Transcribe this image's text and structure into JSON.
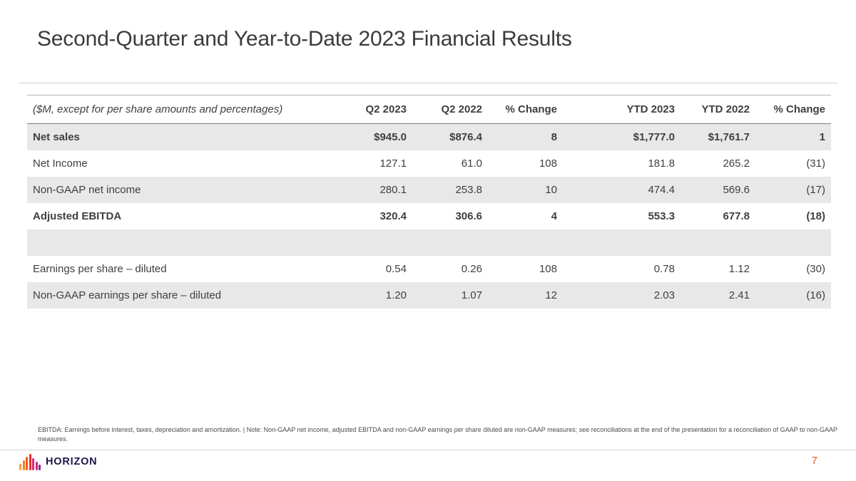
{
  "slide": {
    "title": "Second-Quarter and Year-to-Date 2023 Financial Results"
  },
  "table": {
    "note_label": "($M, except for per share amounts and percentages)",
    "columns": [
      "Q2 2023",
      "Q2 2022",
      "% Change",
      "YTD 2023",
      "YTD 2022",
      "% Change"
    ],
    "rows": [
      {
        "label": "Net sales",
        "values": [
          "$945.0",
          "$876.4",
          "8",
          "$1,777.0",
          "$1,761.7",
          "1"
        ]
      },
      {
        "label": "Net Income",
        "values": [
          "127.1",
          "61.0",
          "108",
          "181.8",
          "265.2",
          "(31)"
        ]
      },
      {
        "label": "Non-GAAP net income",
        "values": [
          "280.1",
          "253.8",
          "10",
          "474.4",
          "569.6",
          "(17)"
        ]
      },
      {
        "label": "Adjusted EBITDA",
        "values": [
          "320.4",
          "306.6",
          "4",
          "553.3",
          "677.8",
          "(18)"
        ]
      },
      {
        "label": "Earnings per share – diluted",
        "values": [
          "0.54",
          "0.26",
          "108",
          "0.78",
          "1.12",
          "(30)"
        ]
      },
      {
        "label": "Non-GAAP earnings per share – diluted",
        "values": [
          "1.20",
          "1.07",
          "12",
          "2.03",
          "2.41",
          "(16)"
        ]
      }
    ],
    "shade_color": "#e8e8e8"
  },
  "footnote": "EBITDA: Earnings before interest, taxes, depreciation and amortization. | Note: Non-GAAP net income, adjusted EBITDA and non-GAAP earnings per share diluted are non-GAAP measures; see reconciliations at the end of the presentation for a reconciliation of GAAP to non-GAAP measures.",
  "footer": {
    "logo_text": "HORIZON",
    "page_number": "7",
    "accent_color": "#e4572a",
    "logo_bars": [
      {
        "h": 9,
        "c": "#f9a03c"
      },
      {
        "h": 14,
        "c": "#f58220"
      },
      {
        "h": 19,
        "c": "#f05b2c"
      },
      {
        "h": 23,
        "c": "#e8302e"
      },
      {
        "h": 17,
        "c": "#e2246e"
      },
      {
        "h": 12,
        "c": "#c12a8c"
      },
      {
        "h": 8,
        "c": "#93278f"
      }
    ]
  }
}
